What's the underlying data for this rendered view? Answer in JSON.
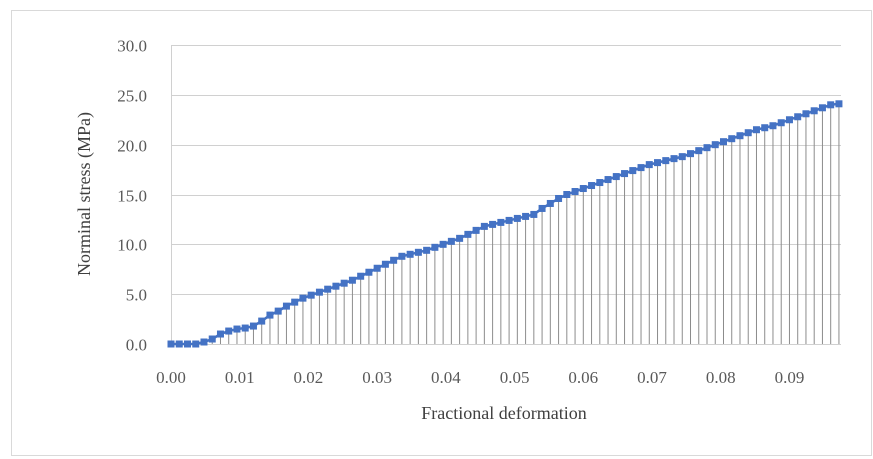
{
  "chart_data": {
    "type": "line",
    "title": "",
    "xlabel": "Fractional deformation",
    "ylabel": "Norminal stress (MPa)",
    "xlim": [
      0.0,
      0.0975
    ],
    "ylim": [
      0.0,
      30.0
    ],
    "x_ticks": [
      "0.00",
      "0.01",
      "0.02",
      "0.03",
      "0.04",
      "0.05",
      "0.06",
      "0.07",
      "0.08",
      "0.09"
    ],
    "x_tick_values": [
      0.0,
      0.01,
      0.02,
      0.03,
      0.04,
      0.05,
      0.06,
      0.07,
      0.08,
      0.09
    ],
    "y_ticks": [
      "0.0",
      "5.0",
      "10.0",
      "15.0",
      "20.0",
      "25.0",
      "30.0"
    ],
    "y_tick_values": [
      0.0,
      5.0,
      10.0,
      15.0,
      20.0,
      25.0,
      30.0
    ],
    "grid": "horizontal",
    "drop_lines": true,
    "legend": "none",
    "colors": {
      "series": "#4472c4",
      "drop_lines": "#8c8c8c",
      "grid": "#d0d0d0"
    },
    "series": [
      {
        "x": [
          0.0,
          0.0012,
          0.0024,
          0.0036,
          0.0048,
          0.006,
          0.0072,
          0.0084,
          0.0096,
          0.0108,
          0.012,
          0.0132,
          0.0144,
          0.0156,
          0.0168,
          0.018,
          0.0192,
          0.0204,
          0.0216,
          0.0228,
          0.024,
          0.0252,
          0.0264,
          0.0276,
          0.0288,
          0.03,
          0.0312,
          0.0324,
          0.0336,
          0.0348,
          0.036,
          0.0372,
          0.0384,
          0.0396,
          0.0408,
          0.042,
          0.0432,
          0.0444,
          0.0456,
          0.0468,
          0.048,
          0.0492,
          0.0504,
          0.0516,
          0.0528,
          0.054,
          0.0552,
          0.0564,
          0.0576,
          0.0588,
          0.06,
          0.0612,
          0.0624,
          0.0636,
          0.0648,
          0.066,
          0.0672,
          0.0684,
          0.0696,
          0.0708,
          0.072,
          0.0732,
          0.0744,
          0.0756,
          0.0768,
          0.078,
          0.0792,
          0.0804,
          0.0816,
          0.0828,
          0.084,
          0.0852,
          0.0864,
          0.0876,
          0.0888,
          0.09,
          0.0912,
          0.0924,
          0.0936,
          0.0948,
          0.096,
          0.0972
        ],
        "y": [
          0.0,
          0.0,
          0.0,
          0.0,
          0.2,
          0.5,
          1.0,
          1.3,
          1.5,
          1.6,
          1.8,
          2.3,
          2.9,
          3.3,
          3.8,
          4.2,
          4.6,
          4.9,
          5.2,
          5.5,
          5.8,
          6.1,
          6.4,
          6.8,
          7.2,
          7.6,
          8.0,
          8.4,
          8.8,
          9.0,
          9.2,
          9.4,
          9.7,
          10.0,
          10.3,
          10.6,
          11.0,
          11.4,
          11.8,
          12.0,
          12.2,
          12.4,
          12.6,
          12.8,
          13.0,
          13.6,
          14.1,
          14.6,
          15.0,
          15.3,
          15.6,
          15.9,
          16.2,
          16.5,
          16.8,
          17.1,
          17.4,
          17.7,
          18.0,
          18.2,
          18.4,
          18.6,
          18.8,
          19.1,
          19.4,
          19.7,
          20.0,
          20.3,
          20.6,
          20.9,
          21.2,
          21.5,
          21.7,
          21.9,
          22.2,
          22.5,
          22.8,
          23.1,
          23.4,
          23.7,
          24.0,
          24.1
        ]
      }
    ]
  }
}
